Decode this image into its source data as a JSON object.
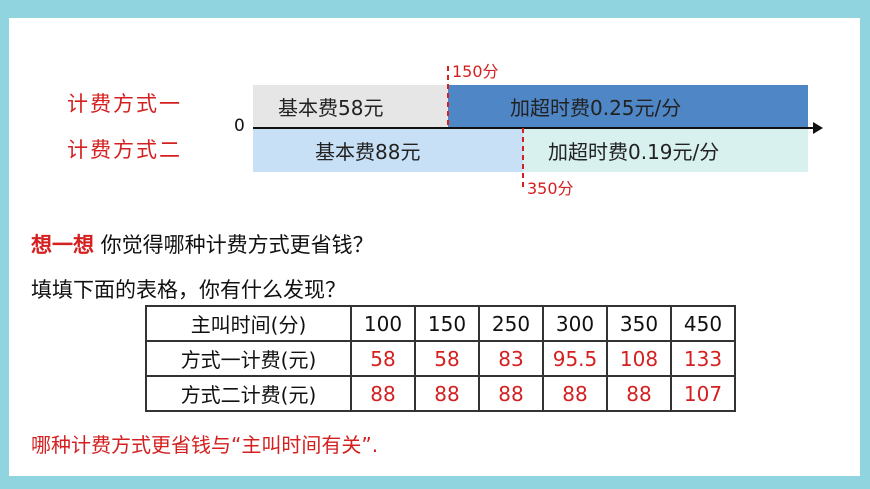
{
  "plans": {
    "plan1_label": "计费方式一",
    "plan2_label": "计费方式二"
  },
  "timeline": {
    "zero": "0",
    "plan1_base": "基本费58元",
    "plan1_extra": "加超时费0.25元/分",
    "plan2_base": "基本费88元",
    "plan2_extra": "加超时费0.19元/分",
    "mark1": "150分",
    "mark2": "350分"
  },
  "question": {
    "head": "想一想",
    "text": " 你觉得哪种计费方式更省钱？",
    "fill_prompt": "填填下面的表格，你有什么发现？"
  },
  "table": {
    "header_label": "主叫时间(分)",
    "minutes": [
      "100",
      "150",
      "250",
      "300",
      "350",
      "450"
    ],
    "row1_label": "方式一计费(元)",
    "row1": [
      "58",
      "58",
      "83",
      "95.5",
      "108",
      "133"
    ],
    "row2_label": "方式二计费(元)",
    "row2": [
      "88",
      "88",
      "88",
      "88",
      "88",
      "107"
    ]
  },
  "conclusion": "哪种计费方式更省钱与“主叫时间有关”.",
  "colors": {
    "background": "#8fd4df",
    "accent_red": "#d42020",
    "plan1_base_fill": "#e6e6e6",
    "plan1_extra_fill": "#4f86c6",
    "plan2_base_fill": "#c8e0f5",
    "plan2_extra_fill": "#d8f0ee"
  }
}
